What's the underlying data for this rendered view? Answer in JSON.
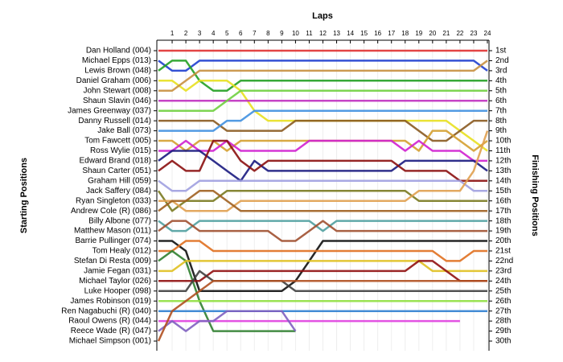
{
  "chart_data": {
    "type": "lap",
    "title": "Laps",
    "y_label_left": "Starting Positions",
    "y_label_right": "Finishing Positions",
    "xticks": [
      1,
      2,
      3,
      4,
      5,
      6,
      7,
      8,
      9,
      10,
      11,
      12,
      13,
      14,
      15,
      16,
      17,
      18,
      19,
      20,
      21,
      22,
      23,
      24
    ],
    "xlim": [
      0,
      24
    ],
    "ylim": [
      1,
      30
    ],
    "finishing_positions": [
      "1st",
      "2nd",
      "3rd",
      "4th",
      "5th",
      "6th",
      "7th",
      "8th",
      "9th",
      "10th",
      "11th",
      "12th",
      "13th",
      "14th",
      "15th",
      "16th",
      "17th",
      "18th",
      "19th",
      "20th",
      "21st",
      "22nd",
      "23rd",
      "24th",
      "25th",
      "26th",
      "27th",
      "28th",
      "29th",
      "30th"
    ],
    "series": [
      {
        "name": "Dan Holland (004)",
        "color": "#e03030",
        "values": [
          1,
          1,
          1,
          1,
          1,
          1,
          1,
          1,
          1,
          1,
          1,
          1,
          1,
          1,
          1,
          1,
          1,
          1,
          1,
          1,
          1,
          1,
          1,
          1,
          1
        ]
      },
      {
        "name": "Michael Epps (013)",
        "color": "#1f3fcf",
        "values": [
          2,
          3,
          3,
          2,
          2,
          2,
          2,
          2,
          2,
          2,
          2,
          2,
          2,
          2,
          2,
          2,
          2,
          2,
          2,
          2,
          2,
          2,
          2,
          2,
          3
        ]
      },
      {
        "name": "Lewis Brown (048)",
        "color": "#22a022",
        "values": [
          3,
          2,
          2,
          4,
          5,
          5,
          4,
          4,
          4,
          4,
          4,
          4,
          4,
          4,
          4,
          4,
          4,
          4,
          4,
          4,
          4,
          4,
          4,
          4,
          4
        ]
      },
      {
        "name": "Daniel Graham (006)",
        "color": "#e8e020",
        "values": [
          4,
          4,
          5,
          4,
          4,
          4,
          5,
          7,
          8,
          8,
          8,
          8,
          8,
          8,
          8,
          8,
          8,
          8,
          8,
          8,
          8,
          8,
          9,
          10,
          11
        ]
      },
      {
        "name": "John Stewart (008)",
        "color": "#c89040",
        "values": [
          5,
          5,
          4,
          3,
          3,
          3,
          3,
          3,
          3,
          3,
          3,
          3,
          3,
          3,
          3,
          3,
          3,
          3,
          3,
          3,
          3,
          3,
          3,
          3,
          2
        ]
      },
      {
        "name": "Shaun Slavin (046)",
        "color": "#c030c0",
        "values": [
          6,
          6,
          6,
          6,
          6,
          6,
          6,
          6,
          6,
          6,
          6,
          6,
          6,
          6,
          6,
          6,
          6,
          6,
          6,
          6,
          6,
          6,
          6,
          6,
          6
        ]
      },
      {
        "name": "James Greenway (037)",
        "color": "#70d040",
        "values": [
          7,
          7,
          7,
          7,
          7,
          6,
          5,
          5,
          5,
          5,
          5,
          5,
          5,
          5,
          5,
          5,
          5,
          5,
          5,
          5,
          5,
          5,
          5,
          5,
          5
        ]
      },
      {
        "name": "Danny Russell (014)",
        "color": "#8a5a20",
        "values": [
          8,
          8,
          8,
          8,
          8,
          9,
          9,
          9,
          9,
          9,
          8,
          8,
          8,
          8,
          8,
          8,
          8,
          8,
          8,
          9,
          10,
          10,
          9,
          8,
          8
        ]
      },
      {
        "name": "Jake Ball (073)",
        "color": "#4090e0",
        "values": [
          9,
          9,
          9,
          9,
          9,
          8,
          8,
          7,
          7,
          7,
          7,
          7,
          7,
          7,
          7,
          7,
          7,
          7,
          7,
          7,
          7,
          7,
          7,
          7,
          7
        ]
      },
      {
        "name": "Tom Fawcett (005)",
        "color": "#d4a030",
        "values": [
          10,
          10,
          11,
          10,
          10,
          11,
          10,
          10,
          10,
          10,
          10,
          10,
          10,
          10,
          10,
          10,
          10,
          10,
          10,
          11,
          9,
          9,
          10,
          11,
          10
        ]
      },
      {
        "name": "Ross Wylie (015)",
        "color": "#d020d0",
        "values": [
          11,
          11,
          10,
          11,
          11,
          10,
          11,
          11,
          11,
          11,
          11,
          10,
          10,
          10,
          10,
          10,
          10,
          10,
          11,
          10,
          11,
          11,
          11,
          12,
          12
        ]
      },
      {
        "name": "Edward Brand (018)",
        "color": "#1a1a80",
        "values": [
          12,
          11,
          11,
          11,
          12,
          13,
          14,
          12,
          13,
          13,
          13,
          13,
          13,
          13,
          13,
          13,
          13,
          13,
          12,
          12,
          12,
          12,
          12,
          12,
          13
        ]
      },
      {
        "name": "Shaun Carter (051)",
        "color": "#8b1010",
        "values": [
          13,
          12,
          13,
          13,
          10,
          10,
          12,
          13,
          12,
          12,
          12,
          12,
          12,
          12,
          12,
          12,
          12,
          12,
          13,
          13,
          13,
          13,
          14,
          14,
          14
        ]
      },
      {
        "name": "Graham Hill (059)",
        "color": "#a0a0e0",
        "values": [
          14,
          15,
          15,
          14,
          14,
          14,
          14,
          14,
          14,
          14,
          14,
          14,
          14,
          14,
          14,
          14,
          14,
          14,
          14,
          14,
          14,
          14,
          14,
          15,
          15
        ]
      },
      {
        "name": "Jack Saffery (084)",
        "color": "#7a7a20",
        "values": [
          15,
          17,
          16,
          16,
          16,
          15,
          15,
          15,
          15,
          15,
          15,
          15,
          15,
          15,
          15,
          15,
          15,
          15,
          15,
          16,
          16,
          16,
          16,
          16,
          16
        ]
      },
      {
        "name": "Ryan Singleton (033)",
        "color": "#e0a050",
        "values": [
          16,
          16,
          17,
          17,
          17,
          17,
          16,
          16,
          16,
          16,
          16,
          16,
          16,
          16,
          16,
          16,
          16,
          16,
          16,
          15,
          15,
          15,
          15,
          13,
          9
        ]
      },
      {
        "name": "Andrew Cole  (R) (086)",
        "color": "#a06020",
        "values": [
          17,
          16,
          16,
          15,
          15,
          16,
          17,
          17,
          17,
          17,
          17,
          17,
          17,
          17,
          17,
          17,
          17,
          17,
          17,
          17,
          17,
          17,
          17,
          17,
          17
        ]
      },
      {
        "name": "Billy Albone (077)",
        "color": "#50a0a0",
        "values": [
          18,
          19,
          19,
          18,
          18,
          18,
          18,
          18,
          18,
          18,
          18,
          18,
          19,
          18,
          18,
          18,
          18,
          18,
          18,
          18,
          18,
          18,
          18,
          18,
          18
        ]
      },
      {
        "name": "Matthew Mason (011)",
        "color": "#a05030",
        "values": [
          19,
          18,
          18,
          19,
          19,
          19,
          19,
          19,
          19,
          20,
          20,
          19,
          18,
          19,
          19,
          19,
          19,
          19,
          19,
          19,
          19,
          19,
          19,
          19,
          19
        ]
      },
      {
        "name": "Barrie Pullinger (074)",
        "color": "#101010",
        "values": [
          20,
          20,
          21,
          25,
          25,
          25,
          25,
          25,
          25,
          25,
          24,
          22,
          20,
          20,
          20,
          20,
          20,
          20,
          20,
          20,
          20,
          20,
          20,
          20,
          20
        ]
      },
      {
        "name": "Tom Healy (012)",
        "color": "#e07020",
        "values": [
          21,
          21,
          20,
          20,
          21,
          21,
          21,
          21,
          21,
          21,
          21,
          21,
          21,
          21,
          21,
          21,
          21,
          21,
          21,
          21,
          21,
          22,
          22,
          21,
          21
        ]
      },
      {
        "name": "Stefan Di Resta (009)",
        "color": "#308030",
        "values": [
          22,
          21,
          22,
          26,
          29,
          29,
          29,
          29,
          29,
          29,
          29,
          null,
          null,
          null,
          null,
          null,
          null,
          null,
          null,
          null,
          null,
          null,
          null,
          null,
          null
        ]
      },
      {
        "name": "Jamie Fegan (031)",
        "color": "#e0c020",
        "values": [
          23,
          23,
          22,
          22,
          22,
          22,
          22,
          22,
          22,
          22,
          22,
          22,
          22,
          22,
          22,
          22,
          22,
          22,
          22,
          22,
          23,
          23,
          23,
          23,
          23
        ]
      },
      {
        "name": "Michael Taylor (026)",
        "color": "#901010",
        "values": [
          24,
          24,
          24,
          24,
          23,
          23,
          23,
          23,
          23,
          23,
          23,
          23,
          23,
          23,
          23,
          23,
          23,
          23,
          23,
          22,
          22,
          23,
          24,
          24,
          24
        ]
      },
      {
        "name": "Luke Hooper (098)",
        "color": "#404040",
        "values": [
          25,
          25,
          25,
          23,
          24,
          24,
          24,
          24,
          24,
          24,
          25,
          25,
          25,
          25,
          25,
          25,
          25,
          25,
          25,
          25,
          25,
          25,
          25,
          25,
          25
        ]
      },
      {
        "name": "James Robinson (019)",
        "color": "#90e040",
        "values": [
          26,
          26,
          26,
          26,
          26,
          26,
          26,
          26,
          26,
          26,
          26,
          26,
          26,
          26,
          26,
          26,
          26,
          26,
          26,
          26,
          26,
          26,
          26,
          26,
          26
        ]
      },
      {
        "name": "Ren Nagabuchi  (R) (040)",
        "color": "#3080d0",
        "values": [
          27,
          27,
          27,
          27,
          27,
          27,
          27,
          27,
          27,
          27,
          27,
          27,
          27,
          27,
          27,
          27,
          27,
          27,
          27,
          27,
          27,
          27,
          27,
          27,
          27
        ]
      },
      {
        "name": "Raoul Owens  (R) (044)",
        "color": "#e040e0",
        "values": [
          28,
          28,
          28,
          28,
          28,
          28,
          28,
          28,
          28,
          28,
          28,
          28,
          28,
          28,
          28,
          28,
          28,
          28,
          28,
          28,
          28,
          28,
          28,
          null,
          null
        ]
      },
      {
        "name": "Reece Wade    (R) (047)",
        "color": "#8060c0",
        "values": [
          29,
          28,
          29,
          28,
          28,
          27,
          27,
          27,
          27,
          27,
          29,
          null,
          null,
          null,
          null,
          null,
          null,
          null,
          null,
          null,
          null,
          null,
          null,
          null,
          null
        ]
      },
      {
        "name": "Michael Simpson (001)",
        "color": "#b05020",
        "values": [
          30,
          27,
          26,
          25,
          24,
          24,
          24,
          24,
          24,
          24,
          24,
          24,
          24,
          24,
          24,
          24,
          24,
          24,
          24,
          24,
          24,
          24,
          24,
          24,
          24
        ]
      }
    ]
  }
}
